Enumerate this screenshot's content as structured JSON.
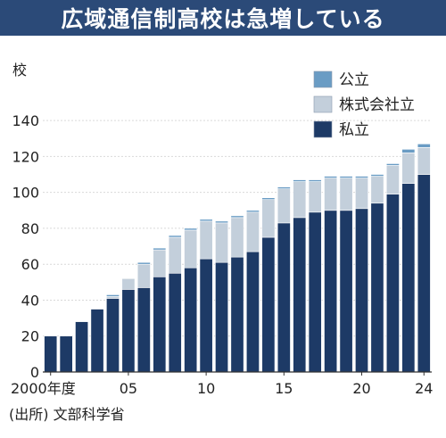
{
  "title": "広域通信制高校は急増している",
  "source": "(出所) 文部科学省",
  "chart_data": {
    "type": "bar",
    "stacked": true,
    "title": "広域通信制高校は急増している",
    "ylabel": "校",
    "ylim": [
      0,
      150
    ],
    "yticks": [
      0,
      20,
      40,
      60,
      80,
      100,
      120,
      140
    ],
    "x_tick_labels": [
      {
        "index": 0,
        "label": "2000年度"
      },
      {
        "index": 5,
        "label": "05"
      },
      {
        "index": 10,
        "label": "10"
      },
      {
        "index": 15,
        "label": "15"
      },
      {
        "index": 20,
        "label": "20"
      },
      {
        "index": 24,
        "label": "24"
      }
    ],
    "categories": [
      "2000",
      "2001",
      "2002",
      "2003",
      "2004",
      "2005",
      "2006",
      "2007",
      "2008",
      "2009",
      "2010",
      "2011",
      "2012",
      "2013",
      "2014",
      "2015",
      "2016",
      "2017",
      "2018",
      "2019",
      "2020",
      "2021",
      "2022",
      "2023",
      "2024"
    ],
    "legend_position": "top-right",
    "series": [
      {
        "name": "私立",
        "color": "#1d3a66",
        "values": [
          20,
          20,
          28,
          35,
          41,
          46,
          47,
          53,
          55,
          58,
          63,
          61,
          64,
          67,
          75,
          83,
          86,
          89,
          90,
          90,
          91,
          94,
          99,
          105,
          110
        ]
      },
      {
        "name": "株式会社立",
        "color": "#c3cfdb",
        "values": [
          0,
          0,
          0,
          0,
          1,
          6,
          13,
          15,
          20,
          21,
          21,
          22,
          22,
          22,
          21,
          19,
          20,
          17,
          18,
          18,
          17,
          15,
          16,
          17,
          15
        ]
      },
      {
        "name": "公立",
        "color": "#6a9cc4",
        "values": [
          0,
          0,
          0,
          0,
          1,
          0,
          1,
          1,
          1,
          1,
          1,
          1,
          1,
          1,
          1,
          1,
          1,
          1,
          1,
          1,
          1,
          1,
          1,
          2,
          2
        ]
      }
    ]
  }
}
